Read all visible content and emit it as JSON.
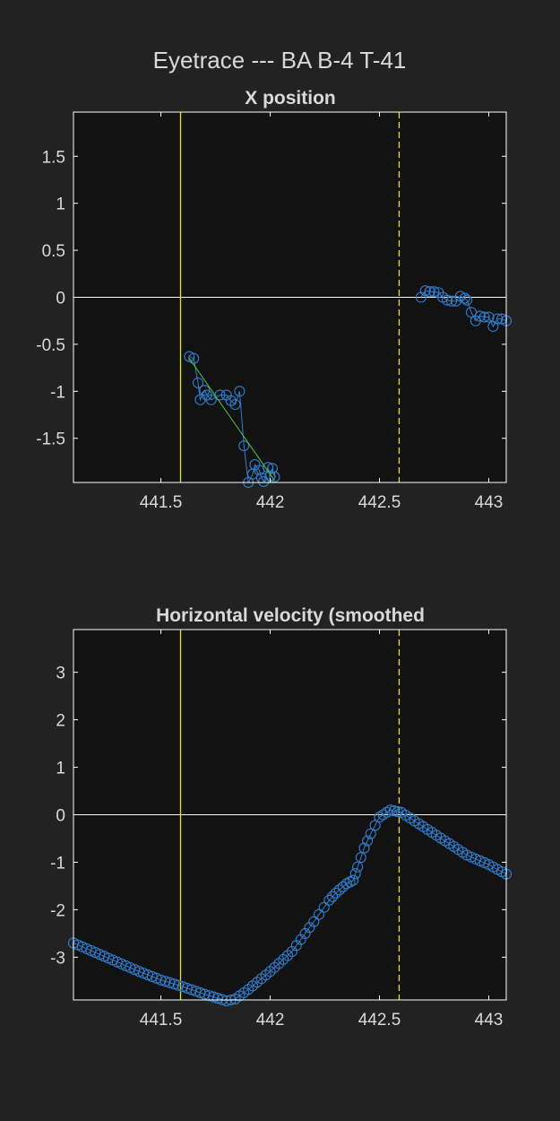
{
  "figure_title": "Eyetrace --- BA B-4 T-41",
  "colors": {
    "background": "#222222",
    "axes_background": "#121212",
    "axes_border": "#ffffff",
    "text": "#d9d9d9",
    "zero_line": "#ffffff",
    "event_line": "#e6e600",
    "marker": "#2f7fd0",
    "fit_line": "#55cc33"
  },
  "chart_data": [
    {
      "type": "scatter",
      "title": "X position",
      "xlabel": "",
      "ylabel": "",
      "xlim": [
        441.1,
        443.08
      ],
      "ylim": [
        -1.97,
        1.97
      ],
      "xticks": [
        "441.5",
        "442",
        "442.5",
        "443"
      ],
      "yticks": [
        "1.5",
        "1",
        "0.5",
        "0",
        "-0.5",
        "-1",
        "-1.5"
      ],
      "grid": false,
      "legend": "none",
      "reference_lines": {
        "horizontal_zero": 0,
        "solid_vertical_x": 441.59,
        "dashed_vertical_x": 442.59
      },
      "series": [
        {
          "x": [
            441.63,
            441.65,
            441.67,
            441.68,
            441.7,
            441.71,
            441.73,
            441.77,
            441.8,
            441.82,
            441.84,
            441.86,
            441.88,
            441.9,
            441.92,
            441.93,
            441.95,
            441.96,
            441.97,
            441.99,
            442.0,
            442.01,
            442.02
          ],
          "y": [
            -0.63,
            -0.65,
            -0.91,
            -1.09,
            -0.99,
            -1.04,
            -1.09,
            -1.04,
            -1.04,
            -1.1,
            -1.14,
            -1.0,
            -1.58,
            -1.97,
            -1.88,
            -1.78,
            -1.84,
            -1.92,
            -1.96,
            -1.81,
            -1.9,
            -1.82,
            -1.91
          ]
        },
        {
          "x": [
            442.69,
            442.71,
            442.73,
            442.75,
            442.77,
            442.79,
            442.81,
            442.83,
            442.85,
            442.87,
            442.89,
            442.9,
            442.92,
            442.94,
            442.96,
            442.98,
            443.0,
            443.02,
            443.04,
            443.06,
            443.08
          ],
          "y": [
            0.0,
            0.07,
            0.06,
            0.06,
            0.05,
            0.0,
            -0.03,
            -0.04,
            -0.04,
            0.01,
            -0.01,
            -0.03,
            -0.16,
            -0.25,
            -0.2,
            -0.21,
            -0.21,
            -0.31,
            -0.23,
            -0.23,
            -0.25
          ]
        }
      ],
      "fit_line": {
        "x": [
          441.63,
          442.02
        ],
        "y": [
          -0.65,
          -1.95
        ]
      }
    },
    {
      "type": "line",
      "title": "Horizontal velocity (smoothed",
      "xlabel": "",
      "ylabel": "",
      "xlim": [
        441.1,
        443.08
      ],
      "ylim": [
        -3.9,
        3.9
      ],
      "xticks": [
        "441.5",
        "442",
        "442.5",
        "443"
      ],
      "yticks": [
        "3",
        "2",
        "1",
        "0",
        "-1",
        "-2",
        "-3"
      ],
      "grid": false,
      "legend": "none",
      "reference_lines": {
        "horizontal_zero": 0,
        "solid_vertical_x": 441.59,
        "dashed_vertical_x": 442.59
      },
      "series": [
        {
          "x": [
            441.1,
            441.2,
            441.3,
            441.4,
            441.5,
            441.6,
            441.7,
            441.8,
            441.84,
            441.9,
            442.0,
            442.1,
            442.2,
            442.27,
            442.3,
            442.35,
            442.38,
            442.4,
            442.43,
            442.46,
            442.5,
            442.55,
            442.6,
            442.7,
            442.8,
            442.9,
            443.0,
            443.08
          ],
          "y": [
            -2.7,
            -2.9,
            -3.1,
            -3.3,
            -3.48,
            -3.62,
            -3.78,
            -3.92,
            -3.88,
            -3.68,
            -3.3,
            -2.88,
            -2.25,
            -1.8,
            -1.65,
            -1.45,
            -1.38,
            -1.1,
            -0.7,
            -0.4,
            -0.05,
            0.1,
            0.05,
            -0.25,
            -0.55,
            -0.85,
            -1.05,
            -1.25
          ]
        }
      ]
    }
  ]
}
